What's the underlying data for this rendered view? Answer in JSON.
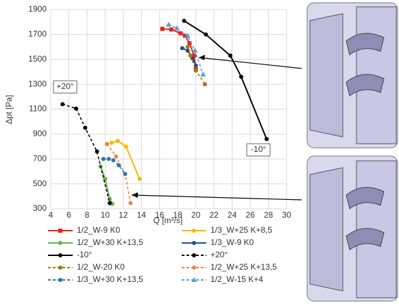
{
  "chart_data": {
    "type": "line",
    "x_label": "Q [m³/s]",
    "y_label": "Δpt [Pa]",
    "xlim": [
      4,
      30
    ],
    "xticks": [
      4,
      6,
      8,
      10,
      12,
      14,
      16,
      18,
      20,
      22,
      24,
      26,
      28,
      30
    ],
    "ylim": [
      300,
      1900
    ],
    "yticks": [
      300,
      500,
      700,
      900,
      1100,
      1300,
      1500,
      1700,
      1900
    ],
    "annotations": [
      "+20°",
      "-10°"
    ],
    "series": [
      {
        "name": "1/2_W-9 K0",
        "color": "#e8201e",
        "dash": false,
        "marker": "square",
        "x": [
          16.3,
          17.3,
          18.3,
          18.8,
          19.3,
          19.8,
          20
        ],
        "values": [
          1745,
          1740,
          1710,
          1690,
          1630,
          1530,
          1420
        ]
      },
      {
        "name": "1/3_W+25 K+8,5",
        "color": "#f5b800",
        "dash": false,
        "marker": "circle",
        "x": [
          10.7,
          11.4,
          12.3,
          13.8
        ],
        "values": [
          830,
          845,
          800,
          540
        ]
      },
      {
        "name": "1/2_W+30 K+13,5",
        "color": "#6ab04c",
        "dash": false,
        "marker": "circle",
        "x": [
          9.5,
          10,
          10.5,
          10.8
        ],
        "values": [
          640,
          540,
          380,
          340
        ]
      },
      {
        "name": "1/3_W-9 K0",
        "color": "#1f4e8c",
        "dash": false,
        "marker": "circle",
        "x": [
          18.5,
          19.1,
          19.6,
          20
        ],
        "values": [
          1590,
          1570,
          1510,
          1450
        ]
      },
      {
        "name": "-10°",
        "color": "#000000",
        "dash": false,
        "marker": "circle",
        "x": [
          18.7,
          21.1,
          23.8,
          25,
          27.8
        ],
        "values": [
          1810,
          1700,
          1530,
          1360,
          860
        ]
      },
      {
        "name": "+20°",
        "color": "#000000",
        "dash": true,
        "marker": "circle",
        "x": [
          5.3,
          6.8,
          7.8,
          9.1,
          10.5
        ],
        "values": [
          1140,
          1105,
          950,
          760,
          345
        ]
      },
      {
        "name": "1/2_W-20 K0",
        "color": "#9c7a12",
        "dash": true,
        "marker": "circle",
        "x": [
          19.1,
          19.4,
          20,
          21
        ],
        "values": [
          1600,
          1530,
          1410,
          1300
        ]
      },
      {
        "name": "1/2_W+25 K+13,5",
        "color": "#f08040",
        "dash": true,
        "marker": "circle",
        "x": [
          10.2,
          11.2,
          12.2,
          12.8
        ],
        "values": [
          820,
          720,
          580,
          345
        ]
      },
      {
        "name": "1/3_W+30 K+13,5",
        "color": "#2e75b6",
        "dash": true,
        "marker": "circle",
        "x": [
          9.8,
          10.4,
          10.9,
          11.5,
          12.2
        ],
        "values": [
          700,
          700,
          690,
          650,
          580
        ]
      },
      {
        "name": "1/2_W-15 K+4",
        "color": "#5b9bd5",
        "dash": true,
        "marker": "triangle",
        "x": [
          17,
          17.9,
          19.1,
          19.9,
          20.8
        ],
        "values": [
          1780,
          1750,
          1690,
          1570,
          1380
        ]
      }
    ]
  }
}
